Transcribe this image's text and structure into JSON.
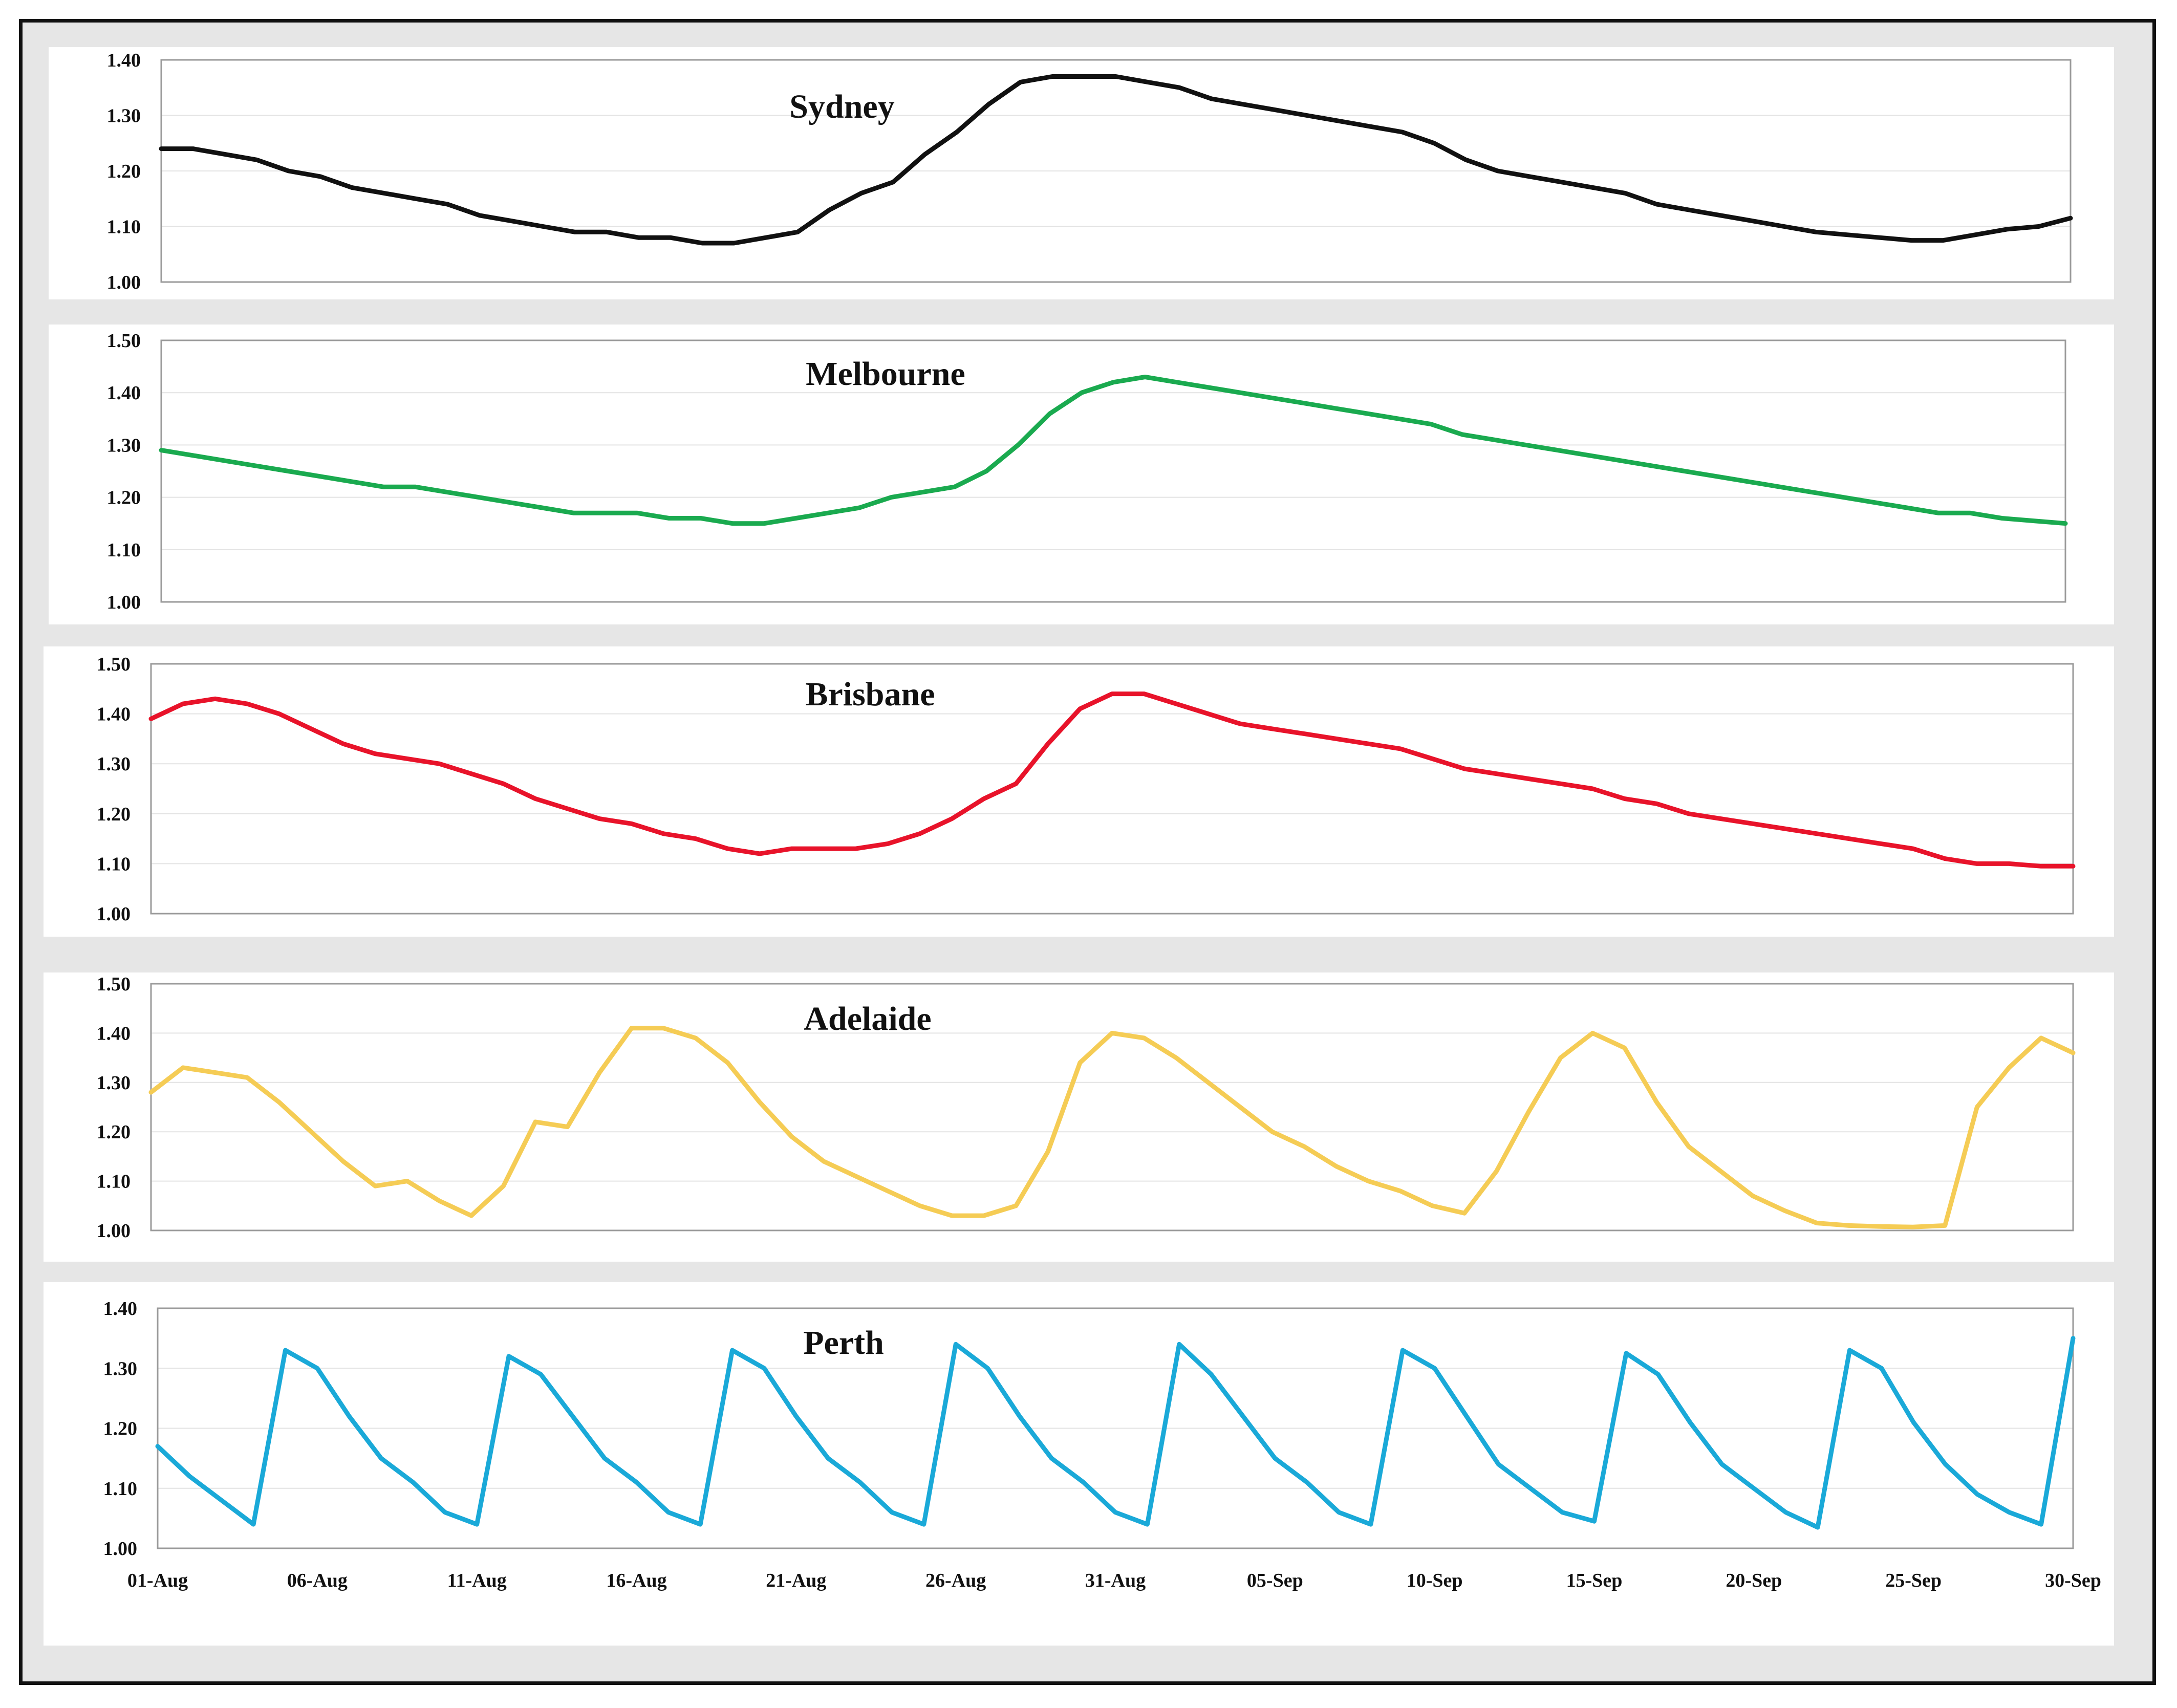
{
  "chart_data": [
    {
      "type": "line",
      "title": "Sydney",
      "color": "#111111",
      "ylim": [
        1.0,
        1.4
      ],
      "yticks": [
        "1.00",
        "1.10",
        "1.20",
        "1.30",
        "1.40"
      ],
      "x": [
        0,
        1,
        2,
        3,
        4,
        5,
        6,
        7,
        8,
        9,
        10,
        11,
        12,
        13,
        14,
        15,
        16,
        17,
        18,
        19,
        20,
        21,
        22,
        23,
        24,
        25,
        26,
        27,
        28,
        29,
        30,
        31,
        32,
        33,
        34,
        35,
        36,
        37,
        38,
        39,
        40,
        41,
        42,
        43,
        44,
        45,
        46,
        47,
        48,
        49,
        50,
        51,
        52,
        53,
        54,
        55,
        56,
        57,
        58,
        59,
        60
      ],
      "values": [
        1.24,
        1.24,
        1.23,
        1.22,
        1.2,
        1.19,
        1.17,
        1.16,
        1.15,
        1.14,
        1.12,
        1.11,
        1.1,
        1.09,
        1.09,
        1.08,
        1.08,
        1.07,
        1.07,
        1.08,
        1.09,
        1.13,
        1.16,
        1.18,
        1.23,
        1.27,
        1.32,
        1.36,
        1.37,
        1.37,
        1.37,
        1.36,
        1.35,
        1.33,
        1.32,
        1.31,
        1.3,
        1.29,
        1.28,
        1.27,
        1.25,
        1.22,
        1.2,
        1.19,
        1.18,
        1.17,
        1.16,
        1.14,
        1.13,
        1.12,
        1.11,
        1.1,
        1.09,
        1.085,
        1.08,
        1.075,
        1.075,
        1.085,
        1.095,
        1.1,
        1.115
      ]
    },
    {
      "type": "line",
      "title": "Melbourne",
      "color": "#1aaa4f",
      "ylim": [
        1.0,
        1.5
      ],
      "yticks": [
        "1.00",
        "1.10",
        "1.20",
        "1.30",
        "1.40",
        "1.50"
      ],
      "x": [
        0,
        1,
        2,
        3,
        4,
        5,
        6,
        7,
        8,
        9,
        10,
        11,
        12,
        13,
        14,
        15,
        16,
        17,
        18,
        19,
        20,
        21,
        22,
        23,
        24,
        25,
        26,
        27,
        28,
        29,
        30,
        31,
        32,
        33,
        34,
        35,
        36,
        37,
        38,
        39,
        40,
        41,
        42,
        43,
        44,
        45,
        46,
        47,
        48,
        49,
        50,
        51,
        52,
        53,
        54,
        55,
        56,
        57,
        58,
        59,
        60
      ],
      "values": [
        1.29,
        1.28,
        1.27,
        1.26,
        1.25,
        1.24,
        1.23,
        1.22,
        1.22,
        1.21,
        1.2,
        1.19,
        1.18,
        1.17,
        1.17,
        1.17,
        1.16,
        1.16,
        1.15,
        1.15,
        1.16,
        1.17,
        1.18,
        1.2,
        1.21,
        1.22,
        1.25,
        1.3,
        1.36,
        1.4,
        1.42,
        1.43,
        1.42,
        1.41,
        1.4,
        1.39,
        1.38,
        1.37,
        1.36,
        1.35,
        1.34,
        1.32,
        1.31,
        1.3,
        1.29,
        1.28,
        1.27,
        1.26,
        1.25,
        1.24,
        1.23,
        1.22,
        1.21,
        1.2,
        1.19,
        1.18,
        1.17,
        1.17,
        1.16,
        1.155,
        1.15
      ]
    },
    {
      "type": "line",
      "title": "Brisbane",
      "color": "#e8132a",
      "ylim": [
        1.0,
        1.5
      ],
      "yticks": [
        "1.00",
        "1.10",
        "1.20",
        "1.30",
        "1.40",
        "1.50"
      ],
      "x": [
        0,
        1,
        2,
        3,
        4,
        5,
        6,
        7,
        8,
        9,
        10,
        11,
        12,
        13,
        14,
        15,
        16,
        17,
        18,
        19,
        20,
        21,
        22,
        23,
        24,
        25,
        26,
        27,
        28,
        29,
        30,
        31,
        32,
        33,
        34,
        35,
        36,
        37,
        38,
        39,
        40,
        41,
        42,
        43,
        44,
        45,
        46,
        47,
        48,
        49,
        50,
        51,
        52,
        53,
        54,
        55,
        56,
        57,
        58,
        59,
        60
      ],
      "values": [
        1.39,
        1.42,
        1.43,
        1.42,
        1.4,
        1.37,
        1.34,
        1.32,
        1.31,
        1.3,
        1.28,
        1.26,
        1.23,
        1.21,
        1.19,
        1.18,
        1.16,
        1.15,
        1.13,
        1.12,
        1.13,
        1.13,
        1.13,
        1.14,
        1.16,
        1.19,
        1.23,
        1.26,
        1.34,
        1.41,
        1.44,
        1.44,
        1.42,
        1.4,
        1.38,
        1.37,
        1.36,
        1.35,
        1.34,
        1.33,
        1.31,
        1.29,
        1.28,
        1.27,
        1.26,
        1.25,
        1.23,
        1.22,
        1.2,
        1.19,
        1.18,
        1.17,
        1.16,
        1.15,
        1.14,
        1.13,
        1.11,
        1.1,
        1.1,
        1.095,
        1.095
      ]
    },
    {
      "type": "line",
      "title": "Adelaide",
      "color": "#f5cc55",
      "ylim": [
        1.0,
        1.5
      ],
      "yticks": [
        "1.00",
        "1.10",
        "1.20",
        "1.30",
        "1.40",
        "1.50"
      ],
      "x": [
        0,
        1,
        2,
        3,
        4,
        5,
        6,
        7,
        8,
        9,
        10,
        11,
        12,
        13,
        14,
        15,
        16,
        17,
        18,
        19,
        20,
        21,
        22,
        23,
        24,
        25,
        26,
        27,
        28,
        29,
        30,
        31,
        32,
        33,
        34,
        35,
        36,
        37,
        38,
        39,
        40,
        41,
        42,
        43,
        44,
        45,
        46,
        47,
        48,
        49,
        50,
        51,
        52,
        53,
        54,
        55,
        56,
        57,
        58,
        59,
        60
      ],
      "values": [
        1.28,
        1.33,
        1.32,
        1.31,
        1.26,
        1.2,
        1.14,
        1.09,
        1.1,
        1.06,
        1.03,
        1.09,
        1.22,
        1.21,
        1.32,
        1.41,
        1.41,
        1.39,
        1.34,
        1.26,
        1.19,
        1.14,
        1.11,
        1.08,
        1.05,
        1.03,
        1.03,
        1.05,
        1.16,
        1.34,
        1.4,
        1.39,
        1.35,
        1.3,
        1.25,
        1.2,
        1.17,
        1.13,
        1.1,
        1.08,
        1.05,
        1.035,
        1.12,
        1.24,
        1.35,
        1.4,
        1.37,
        1.26,
        1.17,
        1.12,
        1.07,
        1.04,
        1.015,
        1.01,
        1.008,
        1.007,
        1.01,
        1.25,
        1.33,
        1.39,
        1.36
      ]
    },
    {
      "type": "line",
      "title": "Perth",
      "color": "#1aa9d8",
      "ylim": [
        1.0,
        1.4
      ],
      "yticks": [
        "1.00",
        "1.10",
        "1.20",
        "1.30",
        "1.40"
      ],
      "xticks": [
        "01-Aug",
        "06-Aug",
        "11-Aug",
        "16-Aug",
        "21-Aug",
        "26-Aug",
        "31-Aug",
        "05-Sep",
        "10-Sep",
        "15-Sep",
        "20-Sep",
        "25-Sep",
        "30-Sep"
      ],
      "x": [
        0,
        1,
        2,
        3,
        4,
        5,
        6,
        7,
        8,
        9,
        10,
        11,
        12,
        13,
        14,
        15,
        16,
        17,
        18,
        19,
        20,
        21,
        22,
        23,
        24,
        25,
        26,
        27,
        28,
        29,
        30,
        31,
        32,
        33,
        34,
        35,
        36,
        37,
        38,
        39,
        40,
        41,
        42,
        43,
        44,
        45,
        46,
        47,
        48,
        49,
        50,
        51,
        52,
        53,
        54,
        55,
        56,
        57,
        58,
        59,
        60
      ],
      "values": [
        1.17,
        1.12,
        1.08,
        1.04,
        1.33,
        1.3,
        1.22,
        1.15,
        1.11,
        1.06,
        1.04,
        1.32,
        1.29,
        1.22,
        1.15,
        1.11,
        1.06,
        1.04,
        1.33,
        1.3,
        1.22,
        1.15,
        1.11,
        1.06,
        1.04,
        1.34,
        1.3,
        1.22,
        1.15,
        1.11,
        1.06,
        1.04,
        1.34,
        1.29,
        1.22,
        1.15,
        1.11,
        1.06,
        1.04,
        1.33,
        1.3,
        1.22,
        1.14,
        1.1,
        1.06,
        1.045,
        1.325,
        1.29,
        1.21,
        1.14,
        1.1,
        1.06,
        1.035,
        1.33,
        1.3,
        1.21,
        1.14,
        1.09,
        1.06,
        1.04,
        1.35
      ]
    }
  ]
}
